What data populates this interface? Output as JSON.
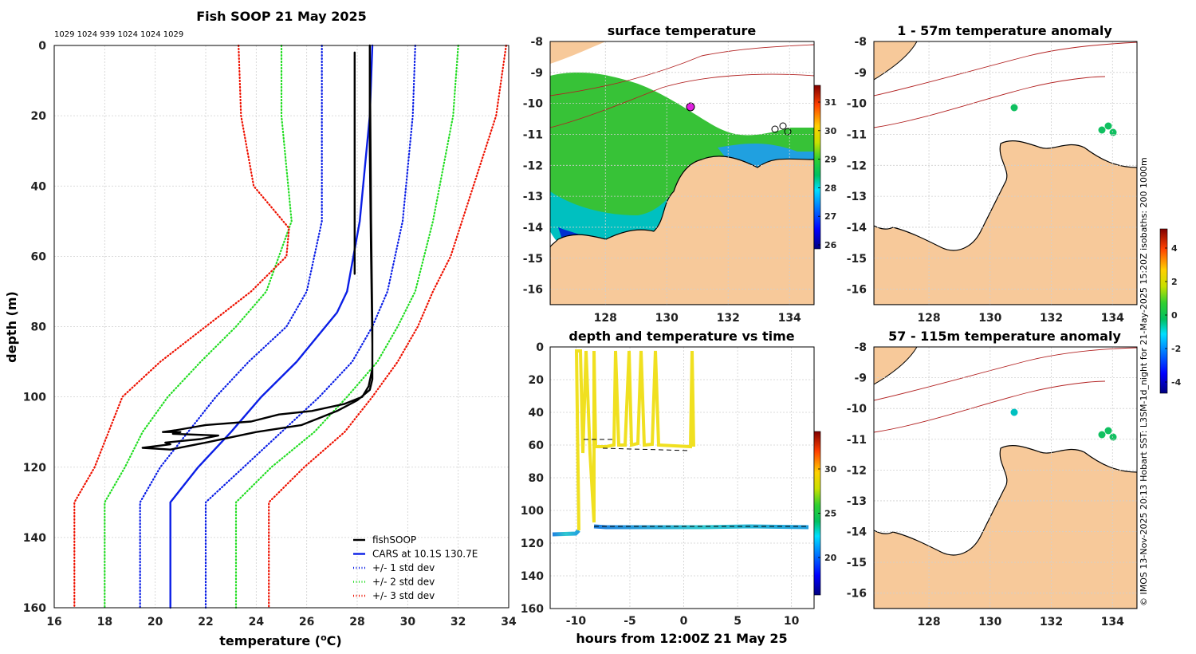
{
  "profile": {
    "title": "Fish SOOP 21 May 2025",
    "header_numbers": "1029 1024 939 1024 1024 1029",
    "xlabel_main": "temperature (",
    "xlabel_sup": "o",
    "xlabel_end": "C)",
    "ylabel": "depth (m)",
    "x_ticks": [
      "16",
      "18",
      "20",
      "22",
      "24",
      "26",
      "28",
      "30",
      "32",
      "34"
    ],
    "y_ticks": [
      "0",
      "20",
      "40",
      "60",
      "80",
      "100",
      "120",
      "140",
      "160"
    ],
    "legend": [
      {
        "label": "fishSOOP",
        "color": "#000000",
        "style": "solid"
      },
      {
        "label": "CARS at 10.1S 130.7E",
        "color": "#0a1ee6",
        "style": "solid"
      },
      {
        "label": "+/- 1 std dev",
        "color": "#0a1ee6",
        "style": "dotted"
      },
      {
        "label": "+/- 2 std dev",
        "color": "#22dd22",
        "style": "dotted"
      },
      {
        "label": "+/- 3 std dev",
        "color": "#ee1100",
        "style": "dotted"
      }
    ]
  },
  "chart_data": {
    "type": "line",
    "title": "Fish SOOP 21 May 2025",
    "xlabel": "temperature (oC)",
    "ylabel": "depth (m)",
    "xlim": [
      16,
      34
    ],
    "ylim": [
      160,
      0
    ],
    "series": [
      {
        "name": "CARS at 10.1S 130.7E",
        "color": "#0a1ee6",
        "dash": "",
        "points": [
          [
            28.6,
            0
          ],
          [
            28.5,
            20
          ],
          [
            28.1,
            50
          ],
          [
            27.6,
            70
          ],
          [
            27.2,
            76
          ],
          [
            25.6,
            90
          ],
          [
            24.2,
            100
          ],
          [
            23.0,
            110
          ],
          [
            21.7,
            120
          ],
          [
            20.6,
            130
          ],
          [
            20.6,
            160
          ]
        ]
      },
      {
        "name": "-1 std dev",
        "color": "#0a1ee6",
        "dash": "1,3",
        "points": [
          [
            26.6,
            0
          ],
          [
            26.6,
            20
          ],
          [
            26.6,
            50
          ],
          [
            26.0,
            70
          ],
          [
            25.2,
            80
          ],
          [
            23.7,
            90
          ],
          [
            22.4,
            100
          ],
          [
            21.3,
            110
          ],
          [
            20.2,
            120
          ],
          [
            19.4,
            130
          ],
          [
            19.4,
            160
          ]
        ]
      },
      {
        "name": "+1 std dev",
        "color": "#0a1ee6",
        "dash": "1,3",
        "points": [
          [
            30.3,
            0
          ],
          [
            30.2,
            20
          ],
          [
            29.8,
            50
          ],
          [
            29.2,
            70
          ],
          [
            28.6,
            80
          ],
          [
            27.8,
            90
          ],
          [
            26.5,
            100
          ],
          [
            25.0,
            110
          ],
          [
            23.5,
            120
          ],
          [
            22.0,
            130
          ],
          [
            22.0,
            160
          ]
        ]
      },
      {
        "name": "-2 std dev",
        "color": "#22dd22",
        "dash": "1,3",
        "points": [
          [
            25.0,
            0
          ],
          [
            25.0,
            20
          ],
          [
            25.4,
            50
          ],
          [
            24.4,
            70
          ],
          [
            23.2,
            80
          ],
          [
            21.8,
            90
          ],
          [
            20.5,
            100
          ],
          [
            19.5,
            110
          ],
          [
            18.8,
            120
          ],
          [
            18.0,
            130
          ],
          [
            18.0,
            160
          ]
        ]
      },
      {
        "name": "+2 std dev",
        "color": "#22dd22",
        "dash": "1,3",
        "points": [
          [
            32.0,
            0
          ],
          [
            31.8,
            20
          ],
          [
            31.0,
            50
          ],
          [
            30.3,
            70
          ],
          [
            29.6,
            80
          ],
          [
            28.8,
            90
          ],
          [
            27.6,
            100
          ],
          [
            26.3,
            110
          ],
          [
            24.6,
            120
          ],
          [
            23.2,
            130
          ],
          [
            23.2,
            160
          ]
        ]
      },
      {
        "name": "-3 std dev",
        "color": "#ee1100",
        "dash": "1,3",
        "points": [
          [
            23.3,
            0
          ],
          [
            23.4,
            20
          ],
          [
            23.9,
            40
          ],
          [
            25.3,
            52
          ],
          [
            25.2,
            60
          ],
          [
            23.8,
            70
          ],
          [
            22.0,
            80
          ],
          [
            20.2,
            90
          ],
          [
            18.7,
            100
          ],
          [
            17.6,
            120
          ],
          [
            16.8,
            130
          ],
          [
            16.8,
            160
          ]
        ]
      },
      {
        "name": "+3 std dev",
        "color": "#ee1100",
        "dash": "1,3",
        "points": [
          [
            33.9,
            0
          ],
          [
            33.5,
            20
          ],
          [
            32.6,
            40
          ],
          [
            31.7,
            60
          ],
          [
            31.0,
            70
          ],
          [
            30.4,
            80
          ],
          [
            29.6,
            90
          ],
          [
            28.6,
            100
          ],
          [
            27.5,
            110
          ],
          [
            25.9,
            120
          ],
          [
            24.5,
            130
          ],
          [
            24.5,
            160
          ]
        ]
      },
      {
        "name": "fishSOOP",
        "color": "#000000",
        "dash": "",
        "points": [
          [
            28.5,
            0
          ],
          [
            28.55,
            50
          ],
          [
            28.6,
            80
          ],
          [
            28.6,
            92
          ],
          [
            28.45,
            97
          ],
          [
            28.2,
            100
          ],
          [
            27.5,
            102
          ],
          [
            26.2,
            104
          ],
          [
            24.9,
            105
          ],
          [
            23.8,
            107
          ],
          [
            22.0,
            108
          ],
          [
            20.8,
            109.5
          ],
          [
            20.3,
            110
          ],
          [
            21.0,
            110
          ],
          [
            20.7,
            110.5
          ],
          [
            22.5,
            111
          ],
          [
            21.8,
            112
          ],
          [
            20.4,
            113
          ],
          [
            20.6,
            113.5
          ],
          [
            19.5,
            114.5
          ],
          [
            20.6,
            115
          ],
          [
            22.0,
            113
          ],
          [
            24.0,
            110
          ],
          [
            25.8,
            108
          ],
          [
            26.5,
            106
          ],
          [
            27.2,
            104
          ],
          [
            28.0,
            101
          ],
          [
            28.5,
            98
          ],
          [
            28.6,
            95
          ],
          [
            28.6,
            85
          ],
          [
            28.55,
            60
          ],
          [
            28.5,
            30
          ],
          [
            28.5,
            0
          ]
        ]
      },
      {
        "name": "fishSOOP surface casts",
        "color": "#000000",
        "dash": "",
        "points": [
          [
            27.9,
            2
          ],
          [
            27.9,
            65
          ]
        ]
      }
    ]
  },
  "sst": {
    "title": "surface temperature",
    "y_ticks": [
      "-8",
      "-9",
      "-10",
      "-11",
      "-12",
      "-13",
      "-14",
      "-15",
      "-16"
    ],
    "x_ticks": [
      "128",
      "130",
      "132",
      "134"
    ],
    "colorbar_ticks": [
      "31",
      "30",
      "29",
      "28",
      "27",
      "26"
    ]
  },
  "anom1": {
    "title": "1 - 57m temperature anomaly",
    "y_ticks": [
      "-8",
      "-9",
      "-10",
      "-11",
      "-12",
      "-13",
      "-14",
      "-15",
      "-16"
    ],
    "x_ticks": [
      "128",
      "130",
      "132",
      "134"
    ]
  },
  "anom2": {
    "title": "57 - 115m temperature anomaly",
    "y_ticks": [
      "-8",
      "-9",
      "-10",
      "-11",
      "-12",
      "-13",
      "-14",
      "-15",
      "-16"
    ],
    "x_ticks": [
      "128",
      "130",
      "132",
      "134"
    ]
  },
  "anom_colorbar_ticks": [
    "4",
    "2",
    "0",
    "-2",
    "-4"
  ],
  "timeseries": {
    "title": "depth and temperature vs time",
    "xlabel": "hours from 12:00Z 21 May 25",
    "y_ticks": [
      "0",
      "20",
      "40",
      "60",
      "80",
      "100",
      "120",
      "140",
      "160"
    ],
    "x_ticks": [
      "-10",
      "-5",
      "0",
      "5",
      "10"
    ],
    "colorbar_ticks": [
      "30",
      "25",
      "20"
    ]
  },
  "side_caption": "© IMOS 13-Nov-2025 20:13 Hobart SST: L3SM-1d_night for 21-May-2025 15:20Z isobaths: 200  1000m"
}
